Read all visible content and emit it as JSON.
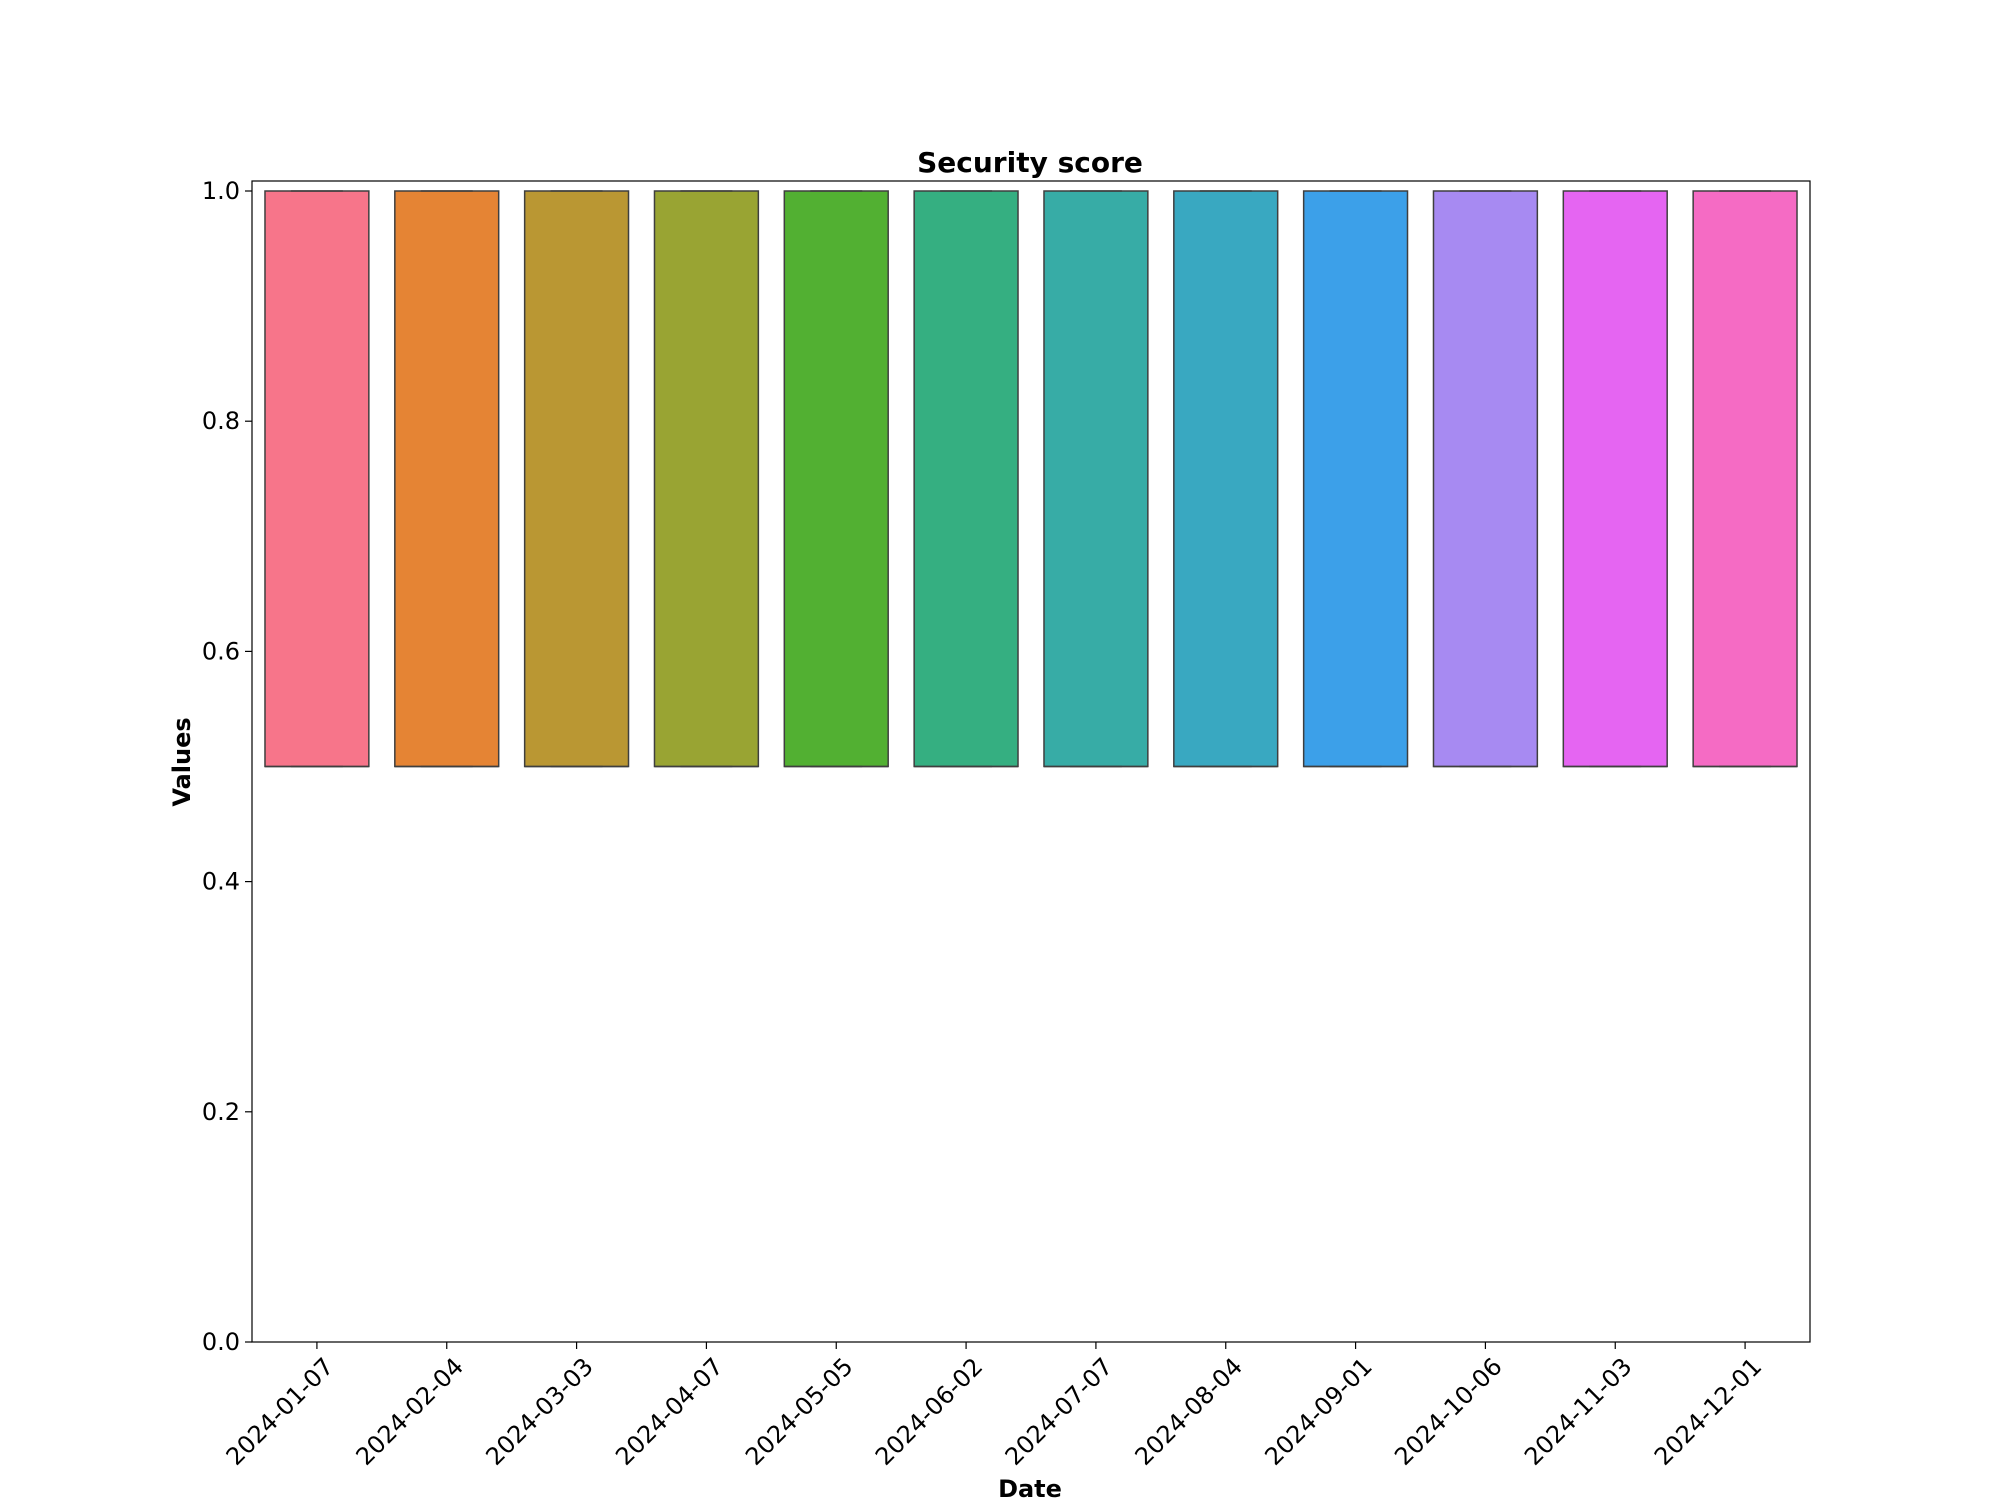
{
  "chart_data": {
    "type": "box",
    "title": "Security score",
    "xlabel": "Date",
    "ylabel": "Values",
    "ylim": [
      0.0,
      1.0
    ],
    "yticks": [
      "0.0",
      "0.2",
      "0.4",
      "0.6",
      "0.8",
      "1.0"
    ],
    "categories": [
      "2024-01-07",
      "2024-02-04",
      "2024-03-03",
      "2024-04-07",
      "2024-05-05",
      "2024-06-02",
      "2024-07-07",
      "2024-08-04",
      "2024-09-01",
      "2024-10-06",
      "2024-11-03",
      "2024-12-01"
    ],
    "boxes": [
      {
        "q1": 0.5,
        "median": 0.5,
        "q3": 1.0,
        "whisker_low": 0.5,
        "whisker_high": 1.0
      },
      {
        "q1": 0.5,
        "median": 0.5,
        "q3": 1.0,
        "whisker_low": 0.5,
        "whisker_high": 1.0
      },
      {
        "q1": 0.5,
        "median": 0.5,
        "q3": 1.0,
        "whisker_low": 0.5,
        "whisker_high": 1.0
      },
      {
        "q1": 0.5,
        "median": 0.5,
        "q3": 1.0,
        "whisker_low": 0.5,
        "whisker_high": 1.0
      },
      {
        "q1": 0.5,
        "median": 0.5,
        "q3": 1.0,
        "whisker_low": 0.5,
        "whisker_high": 1.0
      },
      {
        "q1": 0.5,
        "median": 0.5,
        "q3": 1.0,
        "whisker_low": 0.5,
        "whisker_high": 1.0
      },
      {
        "q1": 0.5,
        "median": 0.5,
        "q3": 1.0,
        "whisker_low": 0.5,
        "whisker_high": 1.0
      },
      {
        "q1": 0.5,
        "median": 0.5,
        "q3": 1.0,
        "whisker_low": 0.5,
        "whisker_high": 1.0
      },
      {
        "q1": 0.5,
        "median": 0.5,
        "q3": 1.0,
        "whisker_low": 0.5,
        "whisker_high": 1.0
      },
      {
        "q1": 0.5,
        "median": 0.5,
        "q3": 1.0,
        "whisker_low": 0.5,
        "whisker_high": 1.0
      },
      {
        "q1": 0.5,
        "median": 0.5,
        "q3": 1.0,
        "whisker_low": 0.5,
        "whisker_high": 1.0
      },
      {
        "q1": 0.5,
        "median": 0.5,
        "q3": 1.0,
        "whisker_low": 0.5,
        "whisker_high": 1.0
      }
    ],
    "colors": [
      "#f7758a",
      "#e58434",
      "#ba9733",
      "#99a433",
      "#52b032",
      "#35af81",
      "#37aca6",
      "#39a8c1",
      "#3ca0e9",
      "#a78af2",
      "#e565f2",
      "#f56bc4"
    ],
    "grid": false,
    "legend": "none"
  }
}
